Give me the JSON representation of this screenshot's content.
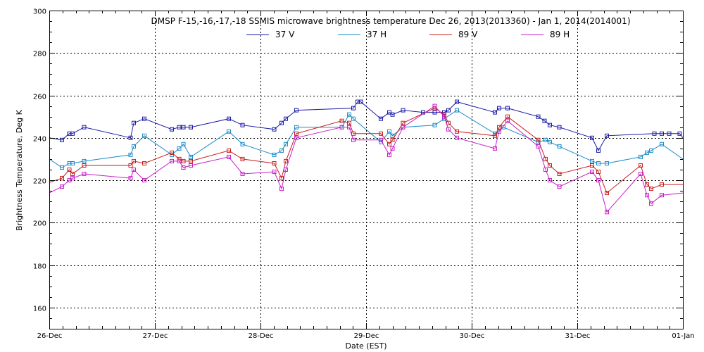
{
  "chart_data": {
    "type": "line",
    "title": "DMSP F-15,-16,-17,-18 SSMIS microwave brightness temperature Dec 26, 2013(2013360) - Jan  1, 2014(2014001)",
    "xlabel": "Date (EST)",
    "ylabel": "Brightness Temperature, Deg K",
    "x_unit": "days since 26-Dec 00:00",
    "xlim": [
      0,
      6
    ],
    "ylim": [
      150,
      300
    ],
    "x_ticks": [
      {
        "value": 0,
        "label": "26-Dec"
      },
      {
        "value": 1,
        "label": "27-Dec"
      },
      {
        "value": 2,
        "label": "28-Dec"
      },
      {
        "value": 3,
        "label": "29-Dec"
      },
      {
        "value": 4,
        "label": "30-Dec"
      },
      {
        "value": 5,
        "label": "31-Dec"
      },
      {
        "value": 6,
        "label": "01-Jan"
      }
    ],
    "y_ticks": [
      {
        "value": 160,
        "label": "160"
      },
      {
        "value": 180,
        "label": "180"
      },
      {
        "value": 200,
        "label": "200"
      },
      {
        "value": 220,
        "label": "220"
      },
      {
        "value": 240,
        "label": "240"
      },
      {
        "value": 260,
        "label": "260"
      },
      {
        "value": 280,
        "label": "280"
      },
      {
        "value": 300,
        "label": "300"
      }
    ],
    "grid": true,
    "legend_position": "top-center",
    "series": [
      {
        "name": "37 V",
        "color": "#1a1aa8",
        "x": [
          0,
          0.12,
          0.19,
          0.22,
          0.33,
          0.77,
          0.8,
          0.9,
          1.16,
          1.23,
          1.27,
          1.34,
          1.7,
          1.83,
          2.13,
          2.2,
          2.24,
          2.34,
          2.88,
          2.92,
          2.95,
          3.14,
          3.22,
          3.25,
          3.35,
          3.54,
          3.65,
          3.74,
          3.78,
          3.86,
          4.22,
          4.26,
          4.34,
          4.63,
          4.69,
          4.74,
          4.83,
          5.14,
          5.2,
          5.28,
          5.73,
          5.8,
          5.87,
          5.97,
          6.0
        ],
        "values": [
          240,
          239,
          242,
          242,
          245,
          240,
          247,
          249,
          244,
          245,
          245,
          245,
          249,
          246,
          244,
          247,
          249,
          253,
          254,
          257,
          257,
          249,
          252,
          251,
          253,
          252,
          252,
          252,
          253,
          257,
          252,
          254,
          254,
          250,
          248,
          246,
          245,
          240,
          234,
          241,
          242,
          242,
          242,
          242,
          240
        ]
      },
      {
        "name": "37 H",
        "color": "#1a8cc8",
        "x": [
          0,
          0.12,
          0.19,
          0.22,
          0.33,
          0.77,
          0.8,
          0.9,
          1.16,
          1.23,
          1.27,
          1.34,
          1.7,
          1.83,
          2.13,
          2.2,
          2.24,
          2.34,
          2.77,
          2.84,
          2.88,
          3.14,
          3.22,
          3.25,
          3.35,
          3.65,
          3.74,
          3.86,
          4.22,
          4.3,
          4.63,
          4.7,
          4.74,
          4.83,
          5.14,
          5.2,
          5.28,
          5.6,
          5.66,
          5.7,
          5.8,
          6.0
        ],
        "values": [
          230,
          226,
          228,
          228,
          229,
          232,
          236,
          241,
          232,
          235,
          237,
          231,
          243,
          237,
          232,
          234,
          237,
          245,
          245,
          251,
          249,
          238,
          243,
          241,
          245,
          246,
          249,
          253,
          242,
          245,
          238,
          239,
          238,
          236,
          229,
          228,
          228,
          231,
          233,
          234,
          237,
          230
        ]
      },
      {
        "name": "89 V",
        "color": "#c81e1e",
        "x": [
          0,
          0.12,
          0.19,
          0.22,
          0.33,
          0.77,
          0.8,
          0.9,
          1.16,
          1.23,
          1.27,
          1.34,
          1.7,
          1.83,
          2.13,
          2.2,
          2.24,
          2.34,
          2.77,
          2.84,
          2.88,
          3.14,
          3.22,
          3.25,
          3.35,
          3.65,
          3.74,
          3.78,
          3.86,
          4.22,
          4.26,
          4.34,
          4.63,
          4.7,
          4.74,
          4.83,
          5.14,
          5.2,
          5.28,
          5.6,
          5.66,
          5.7,
          5.8,
          6.0
        ],
        "values": [
          219,
          221,
          225,
          223,
          227,
          227,
          229,
          228,
          233,
          230,
          229,
          229,
          234,
          230,
          228,
          221,
          229,
          242,
          248,
          247,
          242,
          242,
          237,
          239,
          247,
          254,
          251,
          247,
          243,
          241,
          245,
          250,
          239,
          230,
          227,
          223,
          227,
          224,
          214,
          227,
          218,
          216,
          218,
          218
        ]
      },
      {
        "name": "89 H",
        "color": "#c81ec8",
        "x": [
          0,
          0.12,
          0.19,
          0.22,
          0.33,
          0.77,
          0.8,
          0.9,
          1.16,
          1.23,
          1.27,
          1.34,
          1.7,
          1.83,
          2.13,
          2.2,
          2.24,
          2.34,
          2.77,
          2.84,
          2.88,
          3.14,
          3.22,
          3.25,
          3.35,
          3.65,
          3.74,
          3.78,
          3.86,
          4.22,
          4.26,
          4.34,
          4.63,
          4.7,
          4.74,
          4.83,
          5.14,
          5.2,
          5.28,
          5.6,
          5.66,
          5.7,
          5.8,
          6.0
        ],
        "values": [
          214,
          217,
          220,
          221,
          223,
          221,
          225,
          220,
          229,
          229,
          226,
          227,
          231,
          223,
          224,
          216,
          225,
          240,
          245,
          245,
          239,
          239,
          232,
          235,
          245,
          255,
          250,
          244,
          240,
          235,
          243,
          248,
          236,
          225,
          220,
          217,
          224,
          220,
          205,
          223,
          213,
          209,
          213,
          214
        ]
      }
    ]
  }
}
